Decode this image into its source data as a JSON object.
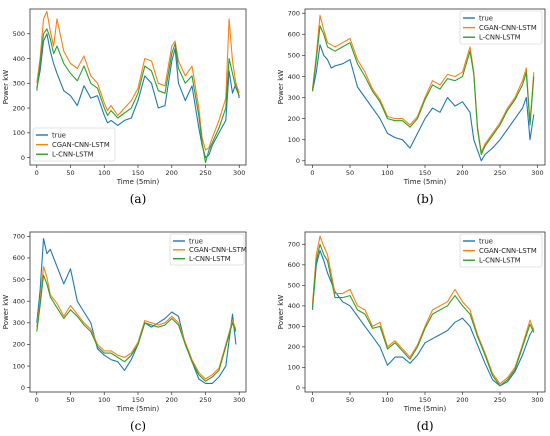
{
  "chart_data": [
    {
      "type": "line",
      "caption": "(a)",
      "xlabel": "Time (5min)",
      "ylabel": "Power kW",
      "xlim": [
        -10,
        310
      ],
      "ylim": [
        -30,
        600
      ],
      "xticks": [
        0,
        50,
        100,
        150,
        200,
        250,
        300
      ],
      "yticks": [
        0,
        100,
        200,
        300,
        400,
        500
      ],
      "legend_position": "lower-left",
      "series": [
        {
          "name": "true",
          "color": "#1f77b4",
          "x": [
            0,
            5,
            10,
            15,
            20,
            25,
            30,
            40,
            50,
            60,
            70,
            80,
            90,
            100,
            105,
            110,
            120,
            130,
            140,
            150,
            160,
            170,
            180,
            190,
            200,
            205,
            210,
            220,
            230,
            240,
            245,
            250,
            255,
            260,
            270,
            280,
            285,
            290,
            295,
            300
          ],
          "y": [
            280,
            350,
            470,
            500,
            430,
            380,
            340,
            270,
            250,
            210,
            290,
            240,
            250,
            170,
            140,
            150,
            130,
            150,
            160,
            230,
            330,
            300,
            200,
            210,
            390,
            440,
            300,
            230,
            290,
            120,
            50,
            0,
            10,
            50,
            100,
            150,
            350,
            260,
            300,
            240
          ]
        },
        {
          "name": "CGAN-CNN-LSTM",
          "color": "#ff7f0e",
          "x": [
            0,
            5,
            10,
            15,
            20,
            25,
            30,
            40,
            50,
            60,
            70,
            80,
            90,
            100,
            105,
            110,
            120,
            130,
            140,
            150,
            160,
            170,
            180,
            190,
            200,
            205,
            210,
            220,
            230,
            240,
            245,
            250,
            255,
            260,
            270,
            280,
            285,
            290,
            295,
            300
          ],
          "y": [
            300,
            400,
            560,
            590,
            510,
            450,
            560,
            430,
            380,
            360,
            410,
            330,
            300,
            220,
            190,
            210,
            170,
            200,
            230,
            280,
            400,
            390,
            300,
            290,
            450,
            470,
            390,
            330,
            370,
            200,
            80,
            30,
            40,
            80,
            150,
            240,
            560,
            390,
            300,
            260
          ]
        },
        {
          "name": "L-CNN-LSTM",
          "color": "#2ca02c",
          "x": [
            0,
            5,
            10,
            15,
            20,
            25,
            30,
            40,
            50,
            60,
            70,
            80,
            90,
            100,
            105,
            110,
            120,
            130,
            140,
            150,
            160,
            170,
            180,
            190,
            200,
            205,
            210,
            220,
            230,
            240,
            245,
            250,
            255,
            260,
            270,
            280,
            285,
            290,
            295,
            300
          ],
          "y": [
            270,
            380,
            500,
            520,
            480,
            420,
            450,
            380,
            340,
            310,
            370,
            300,
            280,
            200,
            170,
            190,
            160,
            180,
            200,
            260,
            370,
            350,
            270,
            260,
            420,
            460,
            360,
            300,
            330,
            170,
            60,
            -20,
            30,
            60,
            120,
            200,
            400,
            340,
            280,
            250
          ]
        }
      ]
    },
    {
      "type": "line",
      "caption": "(b)",
      "xlabel": "Time (5min)",
      "ylabel": "Power kW",
      "xlim": [
        -10,
        310
      ],
      "ylim": [
        -20,
        720
      ],
      "xticks": [
        0,
        50,
        100,
        150,
        200,
        250,
        300
      ],
      "yticks": [
        0,
        100,
        200,
        300,
        400,
        500,
        600,
        700
      ],
      "legend_position": "top-right",
      "series": [
        {
          "name": "true",
          "color": "#1f77b4",
          "x": [
            0,
            5,
            10,
            15,
            20,
            25,
            30,
            40,
            50,
            60,
            70,
            80,
            90,
            100,
            110,
            120,
            130,
            140,
            150,
            160,
            170,
            180,
            190,
            200,
            210,
            215,
            220,
            225,
            230,
            240,
            250,
            260,
            270,
            280,
            285,
            290,
            295
          ],
          "y": [
            330,
            420,
            550,
            500,
            480,
            440,
            450,
            460,
            480,
            350,
            300,
            250,
            200,
            130,
            110,
            100,
            60,
            130,
            200,
            250,
            230,
            300,
            260,
            280,
            230,
            100,
            50,
            0,
            30,
            60,
            100,
            150,
            200,
            250,
            300,
            100,
            220
          ]
        },
        {
          "name": "CGAN-CNN-LSTM",
          "color": "#ff7f0e",
          "x": [
            0,
            5,
            10,
            15,
            20,
            25,
            30,
            40,
            50,
            60,
            70,
            80,
            90,
            100,
            110,
            120,
            130,
            140,
            150,
            160,
            170,
            180,
            190,
            200,
            210,
            215,
            220,
            225,
            230,
            240,
            250,
            260,
            270,
            280,
            285,
            290,
            295
          ],
          "y": [
            340,
            500,
            690,
            620,
            560,
            550,
            540,
            560,
            580,
            480,
            420,
            340,
            290,
            210,
            200,
            200,
            170,
            210,
            300,
            380,
            360,
            410,
            400,
            420,
            540,
            420,
            160,
            40,
            80,
            130,
            180,
            250,
            300,
            380,
            440,
            180,
            420
          ]
        },
        {
          "name": "L-CNN-LSTM",
          "color": "#2ca02c",
          "x": [
            0,
            5,
            10,
            15,
            20,
            25,
            30,
            40,
            50,
            60,
            70,
            80,
            90,
            100,
            110,
            120,
            130,
            140,
            150,
            160,
            170,
            180,
            190,
            200,
            210,
            215,
            220,
            225,
            230,
            240,
            250,
            260,
            270,
            280,
            285,
            290,
            295
          ],
          "y": [
            330,
            480,
            640,
            600,
            540,
            530,
            520,
            540,
            560,
            460,
            400,
            330,
            280,
            200,
            190,
            190,
            160,
            200,
            290,
            360,
            340,
            390,
            380,
            400,
            520,
            410,
            150,
            30,
            70,
            120,
            170,
            240,
            290,
            360,
            420,
            170,
            400
          ]
        }
      ]
    },
    {
      "type": "line",
      "caption": "(c)",
      "xlabel": "Time (5min)",
      "ylabel": "Power kW",
      "xlim": [
        -10,
        310
      ],
      "ylim": [
        -20,
        720
      ],
      "xticks": [
        0,
        50,
        100,
        150,
        200,
        250,
        300
      ],
      "yticks": [
        0,
        100,
        200,
        300,
        400,
        500,
        600,
        700
      ],
      "legend_position": "top-right",
      "series": [
        {
          "name": "true",
          "color": "#1f77b4",
          "x": [
            0,
            5,
            10,
            15,
            20,
            30,
            40,
            50,
            60,
            70,
            80,
            90,
            100,
            110,
            120,
            130,
            140,
            150,
            160,
            170,
            180,
            190,
            200,
            210,
            220,
            230,
            240,
            250,
            260,
            270,
            280,
            290,
            295
          ],
          "y": [
            300,
            450,
            690,
            620,
            640,
            560,
            480,
            550,
            400,
            350,
            300,
            180,
            150,
            130,
            120,
            80,
            130,
            200,
            300,
            280,
            300,
            320,
            350,
            330,
            200,
            120,
            40,
            20,
            20,
            50,
            100,
            340,
            200
          ]
        },
        {
          "name": "CGAN-CNN-LSTM",
          "color": "#ff7f0e",
          "x": [
            0,
            5,
            10,
            15,
            20,
            30,
            40,
            50,
            60,
            70,
            80,
            90,
            100,
            110,
            120,
            130,
            140,
            150,
            160,
            170,
            180,
            190,
            200,
            210,
            220,
            230,
            240,
            250,
            260,
            270,
            280,
            290,
            295
          ],
          "y": [
            280,
            400,
            560,
            510,
            430,
            390,
            330,
            380,
            340,
            300,
            270,
            200,
            170,
            170,
            150,
            140,
            160,
            210,
            310,
            300,
            290,
            300,
            330,
            300,
            210,
            130,
            70,
            40,
            60,
            90,
            200,
            310,
            270
          ]
        },
        {
          "name": "L-CNN-LSTM",
          "color": "#2ca02c",
          "x": [
            0,
            5,
            10,
            15,
            20,
            30,
            40,
            50,
            60,
            70,
            80,
            90,
            100,
            110,
            120,
            130,
            140,
            150,
            160,
            170,
            180,
            190,
            200,
            210,
            220,
            230,
            240,
            250,
            260,
            270,
            280,
            290,
            295
          ],
          "y": [
            260,
            380,
            520,
            480,
            420,
            370,
            320,
            360,
            330,
            290,
            260,
            190,
            160,
            160,
            140,
            120,
            150,
            200,
            300,
            290,
            280,
            290,
            320,
            290,
            200,
            120,
            60,
            30,
            50,
            80,
            190,
            300,
            260
          ]
        }
      ]
    },
    {
      "type": "line",
      "caption": "(d)",
      "xlabel": "Time (5min)",
      "ylabel": "Power kW",
      "xlim": [
        -10,
        310
      ],
      "ylim": [
        -20,
        760
      ],
      "xticks": [
        0,
        50,
        100,
        150,
        200,
        250,
        300
      ],
      "yticks": [
        0,
        100,
        200,
        300,
        400,
        500,
        600,
        700
      ],
      "legend_position": "top-right",
      "series": [
        {
          "name": "true",
          "color": "#1f77b4",
          "x": [
            0,
            5,
            10,
            15,
            20,
            30,
            40,
            50,
            60,
            70,
            80,
            90,
            100,
            110,
            120,
            130,
            140,
            150,
            160,
            170,
            180,
            190,
            200,
            210,
            220,
            230,
            240,
            250,
            260,
            270,
            280,
            290,
            295
          ],
          "y": [
            390,
            600,
            670,
            620,
            560,
            470,
            420,
            400,
            350,
            300,
            250,
            200,
            110,
            150,
            150,
            120,
            160,
            220,
            240,
            260,
            280,
            320,
            340,
            300,
            210,
            120,
            40,
            10,
            30,
            80,
            160,
            260,
            290
          ]
        },
        {
          "name": "CGAN-CNN-LSTM",
          "color": "#ff7f0e",
          "x": [
            0,
            5,
            10,
            15,
            20,
            30,
            40,
            50,
            60,
            70,
            80,
            90,
            100,
            110,
            120,
            130,
            140,
            150,
            160,
            170,
            180,
            190,
            200,
            210,
            220,
            230,
            240,
            250,
            260,
            270,
            280,
            290,
            295
          ],
          "y": [
            410,
            650,
            740,
            690,
            650,
            460,
            460,
            480,
            400,
            380,
            300,
            320,
            200,
            230,
            190,
            150,
            210,
            300,
            380,
            400,
            420,
            480,
            420,
            380,
            260,
            170,
            70,
            20,
            50,
            100,
            210,
            330,
            280
          ]
        },
        {
          "name": "L-CNN-LSTM",
          "color": "#2ca02c",
          "x": [
            0,
            5,
            10,
            15,
            20,
            30,
            40,
            50,
            60,
            70,
            80,
            90,
            100,
            110,
            120,
            130,
            140,
            150,
            160,
            170,
            180,
            190,
            200,
            210,
            220,
            230,
            240,
            250,
            260,
            270,
            280,
            290,
            295
          ],
          "y": [
            380,
            620,
            700,
            650,
            620,
            440,
            440,
            450,
            380,
            360,
            290,
            300,
            190,
            220,
            180,
            140,
            200,
            290,
            360,
            380,
            400,
            450,
            400,
            360,
            250,
            160,
            60,
            10,
            40,
            90,
            200,
            310,
            270
          ]
        }
      ]
    }
  ]
}
